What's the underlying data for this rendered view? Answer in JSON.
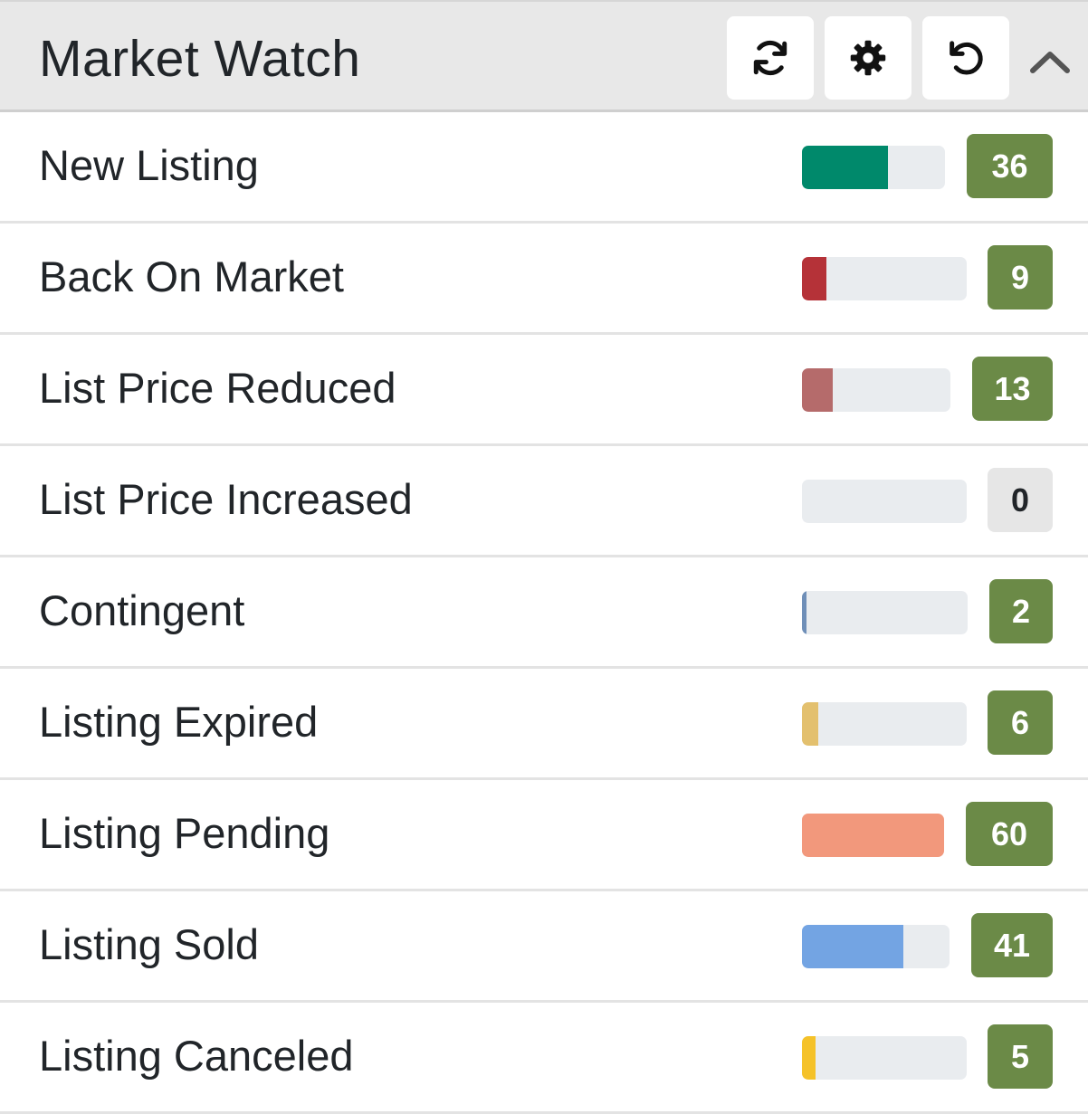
{
  "widget": {
    "title": "Market Watch",
    "buttons": [
      {
        "name": "refresh-button",
        "icon": "refresh-icon"
      },
      {
        "name": "settings-button",
        "icon": "gear-icon"
      },
      {
        "name": "reset-button",
        "icon": "undo-icon"
      }
    ],
    "collapse_icon": "chevron-up-icon"
  },
  "colors": {
    "badge_active": "#6b8a47",
    "badge_zero": "#e6e6e6",
    "track": "#e9ecef"
  },
  "rows": [
    {
      "label": "New Listing",
      "count": "36",
      "fill_fraction": 0.6,
      "color": "#00896b"
    },
    {
      "label": "Back On Market",
      "count": "9",
      "fill_fraction": 0.15,
      "color": "#b53238"
    },
    {
      "label": "List Price Reduced",
      "count": "13",
      "fill_fraction": 0.21,
      "color": "#b56b6b"
    },
    {
      "label": "List Price Increased",
      "count": "0",
      "fill_fraction": 0.0,
      "color": "#c0c0c0"
    },
    {
      "label": "Contingent",
      "count": "2",
      "fill_fraction": 0.03,
      "color": "#6f8fb8"
    },
    {
      "label": "Listing Expired",
      "count": "6",
      "fill_fraction": 0.1,
      "color": "#e3c06e"
    },
    {
      "label": "Listing Pending",
      "count": "60",
      "fill_fraction": 1.0,
      "color": "#f2987c"
    },
    {
      "label": "Listing Sold",
      "count": "41",
      "fill_fraction": 0.69,
      "color": "#73a4e3"
    },
    {
      "label": "Listing Canceled",
      "count": "5",
      "fill_fraction": 0.08,
      "color": "#f5c229"
    }
  ]
}
